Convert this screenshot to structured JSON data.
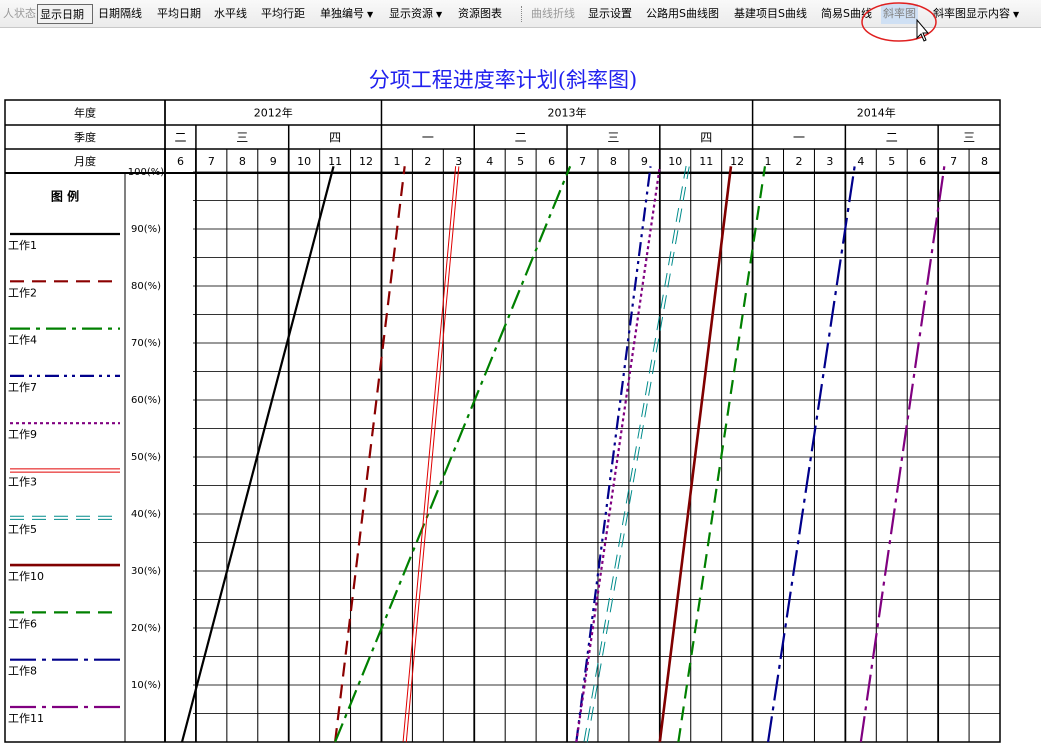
{
  "toolbar": {
    "items": [
      {
        "label": "人状态",
        "state": "disabled"
      },
      {
        "label": "显示日期",
        "state": "boxed"
      },
      {
        "label": "日期隔线"
      },
      {
        "label": "平均日期"
      },
      {
        "label": "水平线"
      },
      {
        "label": "平均行距"
      },
      {
        "label": "单独编号",
        "dropdown": true
      },
      {
        "label": "显示资源",
        "dropdown": true
      },
      {
        "label": "资源图表"
      },
      {
        "label": "曲线折线",
        "state": "disabled"
      },
      {
        "label": "显示设置"
      },
      {
        "label": "公路用S曲线图"
      },
      {
        "label": "基建项目S曲线"
      },
      {
        "label": "简易S曲线"
      },
      {
        "label": "斜率图",
        "state": "hover"
      },
      {
        "label": "斜率图显示内容",
        "dropdown": true
      }
    ]
  },
  "chart": {
    "title": "分项工程进度率计划(斜率图)",
    "row_labels": {
      "year": "年度",
      "quarter": "季度",
      "month": "月度"
    },
    "years": [
      {
        "label": "2012年",
        "start": 0,
        "span": 7
      },
      {
        "label": "2013年",
        "start": 7,
        "span": 12
      },
      {
        "label": "2014年",
        "start": 19,
        "span": 8
      }
    ],
    "quarters": [
      {
        "label": "二",
        "start": 0,
        "span": 1
      },
      {
        "label": "三",
        "start": 1,
        "span": 3
      },
      {
        "label": "四",
        "start": 4,
        "span": 3
      },
      {
        "label": "一",
        "start": 7,
        "span": 3
      },
      {
        "label": "二",
        "start": 10,
        "span": 3
      },
      {
        "label": "三",
        "start": 13,
        "span": 3
      },
      {
        "label": "四",
        "start": 16,
        "span": 3
      },
      {
        "label": "一",
        "start": 19,
        "span": 3
      },
      {
        "label": "二",
        "start": 22,
        "span": 3
      },
      {
        "label": "三",
        "start": 25,
        "span": 2
      }
    ],
    "months": [
      "6",
      "7",
      "8",
      "9",
      "10",
      "11",
      "12",
      "1",
      "2",
      "3",
      "4",
      "5",
      "6",
      "7",
      "8",
      "9",
      "10",
      "11",
      "12",
      "1",
      "2",
      "3",
      "4",
      "5",
      "6",
      "7",
      "8"
    ],
    "y_ticks": [
      {
        "label": "100(%)",
        "value": 100
      },
      {
        "label": "90(%)",
        "value": 90
      },
      {
        "label": "80(%)",
        "value": 80
      },
      {
        "label": "70(%)",
        "value": 70
      },
      {
        "label": "60(%)",
        "value": 60
      },
      {
        "label": "50(%)",
        "value": 50
      },
      {
        "label": "40(%)",
        "value": 40
      },
      {
        "label": "30(%)",
        "value": 30
      },
      {
        "label": "20(%)",
        "value": 20
      },
      {
        "label": "10(%)",
        "value": 10
      }
    ],
    "legend": {
      "title": "图 例",
      "items": [
        {
          "id": "w1",
          "label": "工作1",
          "color": "#000000",
          "style": "solid"
        },
        {
          "id": "w2",
          "label": "工作2",
          "color": "#8b0000",
          "style": "dashed"
        },
        {
          "id": "w4",
          "label": "工作4",
          "color": "#008000",
          "style": "dashdot"
        },
        {
          "id": "w7",
          "label": "工作7",
          "color": "#00008b",
          "style": "dashdotdot"
        },
        {
          "id": "w9",
          "label": "工作9",
          "color": "#800080",
          "style": "dotted"
        },
        {
          "id": "w3",
          "label": "工作3",
          "color": "#e00000",
          "style": "double"
        },
        {
          "id": "w5",
          "label": "工作5",
          "color": "#008b8b",
          "style": "doubledashed"
        },
        {
          "id": "w10",
          "label": "工作10",
          "color": "#800000",
          "style": "thick"
        },
        {
          "id": "w6",
          "label": "工作6",
          "color": "#008000",
          "style": "dashed"
        },
        {
          "id": "w8",
          "label": "工作8",
          "color": "#00008b",
          "style": "dashdotlong"
        },
        {
          "id": "w11",
          "label": "工作11",
          "color": "#800080",
          "style": "dashdotlong"
        }
      ]
    }
  }
}
